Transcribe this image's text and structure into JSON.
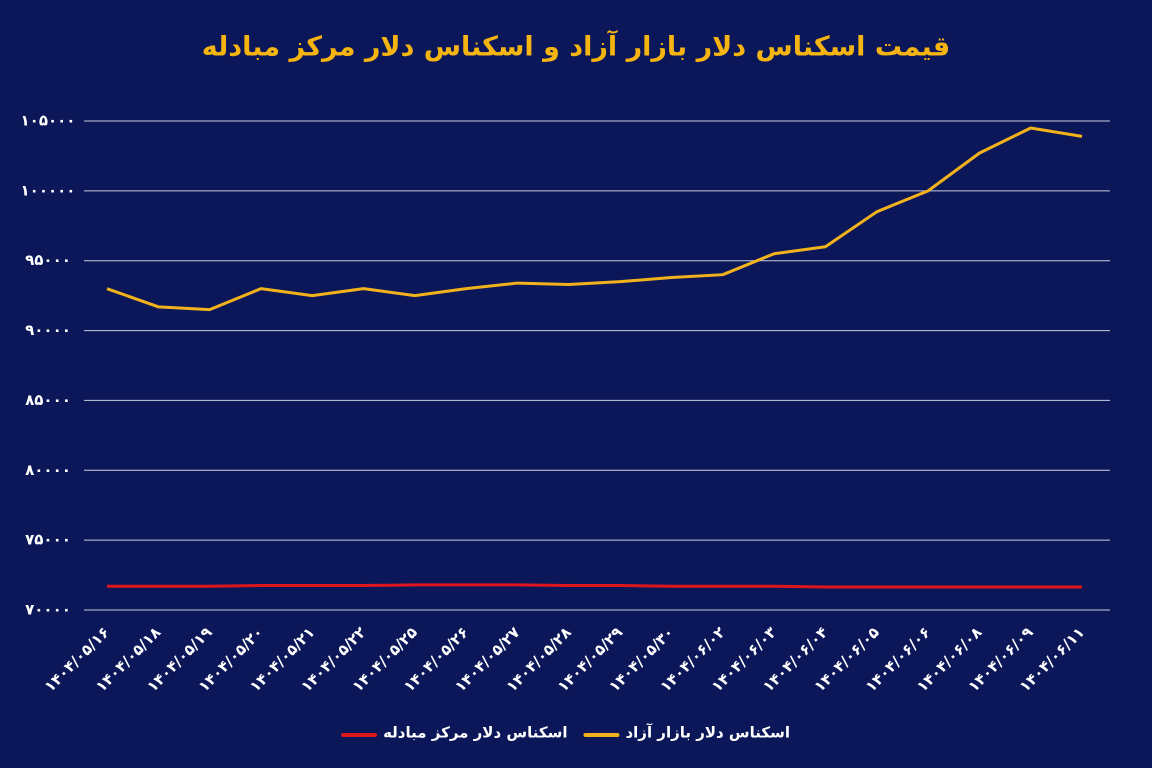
{
  "chart_data": {
    "type": "line",
    "title": "قیمت اسکناس دلار بازار آزاد و اسکناس دلار مرکز مبادله",
    "categories": [
      "۱۴۰۴/۰۵/۱۶",
      "۱۴۰۴/۰۵/۱۸",
      "۱۴۰۴/۰۵/۱۹",
      "۱۴۰۴/۰۵/۲۰",
      "۱۴۰۴/۰۵/۲۱",
      "۱۴۰۴/۰۵/۲۲",
      "۱۴۰۴/۰۵/۲۵",
      "۱۴۰۴/۰۵/۲۶",
      "۱۴۰۴/۰۵/۲۷",
      "۱۴۰۴/۰۵/۲۸",
      "۱۴۰۴/۰۵/۲۹",
      "۱۴۰۴/۰۵/۳۰",
      "۱۴۰۴/۰۶/۰۲",
      "۱۴۰۴/۰۶/۰۳",
      "۱۴۰۴/۰۶/۰۴",
      "۱۴۰۴/۰۶/۰۵",
      "۱۴۰۴/۰۶/۰۶",
      "۱۴۰۴/۰۶/۰۸",
      "۱۴۰۴/۰۶/۰۹",
      "۱۴۰۴/۰۶/۱۱"
    ],
    "series": [
      {
        "name": "اسکناس دلار بازار آزاد",
        "color": "#f2b21c",
        "values": [
          93000,
          91700,
          91500,
          93000,
          92500,
          93000,
          92500,
          93000,
          93400,
          93300,
          93500,
          93800,
          94000,
          95500,
          96000,
          98500,
          100000,
          102700,
          104500,
          103900
        ]
      },
      {
        "name": "اسکناس دلار مرکز مبادله",
        "color": "#e0161e",
        "values": [
          71700,
          71700,
          71700,
          71750,
          71750,
          71750,
          71800,
          71800,
          71800,
          71750,
          71750,
          71700,
          71700,
          71700,
          71650,
          71650,
          71650,
          71650,
          71650,
          71650
        ]
      }
    ],
    "ylim": [
      70000,
      105000
    ],
    "yticks": [
      {
        "value": 70000,
        "label": "۷۰۰۰۰"
      },
      {
        "value": 75000,
        "label": "۷۵۰۰۰"
      },
      {
        "value": 80000,
        "label": "۸۰۰۰۰"
      },
      {
        "value": 85000,
        "label": "۸۵۰۰۰"
      },
      {
        "value": 90000,
        "label": "۹۰۰۰۰"
      },
      {
        "value": 95000,
        "label": "۹۵۰۰۰"
      },
      {
        "value": 100000,
        "label": "۱۰۰۰۰۰"
      },
      {
        "value": 105000,
        "label": "۱۰۵۰۰۰"
      }
    ],
    "grid": true,
    "legend": "bottom"
  }
}
